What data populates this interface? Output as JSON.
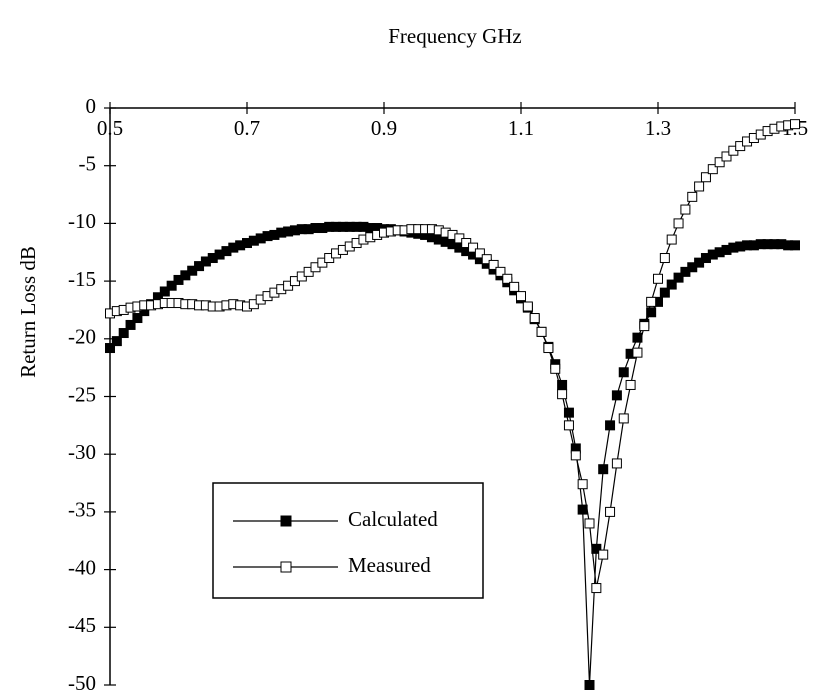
{
  "chart_data": {
    "type": "line",
    "title": "Frequency GHz",
    "ylabel": "Return Loss  dB",
    "x": [
      0.5,
      0.51,
      0.52,
      0.53,
      0.54,
      0.55,
      0.56,
      0.57,
      0.58,
      0.59,
      0.6,
      0.61,
      0.62,
      0.63,
      0.64,
      0.65,
      0.66,
      0.67,
      0.68,
      0.69,
      0.7,
      0.71,
      0.72,
      0.73,
      0.74,
      0.75,
      0.76,
      0.77,
      0.78,
      0.79,
      0.8,
      0.81,
      0.82,
      0.83,
      0.84,
      0.85,
      0.86,
      0.87,
      0.88,
      0.89,
      0.9,
      0.91,
      0.92,
      0.93,
      0.94,
      0.95,
      0.96,
      0.97,
      0.98,
      0.99,
      1.0,
      1.01,
      1.02,
      1.03,
      1.04,
      1.05,
      1.06,
      1.07,
      1.08,
      1.09,
      1.1,
      1.11,
      1.12,
      1.13,
      1.14,
      1.15,
      1.16,
      1.17,
      1.18,
      1.19,
      1.2,
      1.21,
      1.22,
      1.23,
      1.24,
      1.25,
      1.26,
      1.27,
      1.28,
      1.29,
      1.3,
      1.31,
      1.32,
      1.33,
      1.34,
      1.35,
      1.36,
      1.37,
      1.38,
      1.39,
      1.4,
      1.41,
      1.42,
      1.43,
      1.44,
      1.45,
      1.46,
      1.47,
      1.48,
      1.49,
      1.5
    ],
    "series": [
      {
        "name": "Calculated",
        "color": "#000000",
        "marker_fill": "#000000",
        "values": [
          -20.8,
          -20.2,
          -19.5,
          -18.8,
          -18.2,
          -17.6,
          -17.0,
          -16.4,
          -15.9,
          -15.4,
          -14.9,
          -14.5,
          -14.1,
          -13.7,
          -13.3,
          -13.0,
          -12.7,
          -12.4,
          -12.1,
          -11.9,
          -11.7,
          -11.5,
          -11.3,
          -11.1,
          -11.0,
          -10.8,
          -10.7,
          -10.6,
          -10.5,
          -10.5,
          -10.4,
          -10.4,
          -10.3,
          -10.3,
          -10.3,
          -10.3,
          -10.3,
          -10.3,
          -10.4,
          -10.4,
          -10.5,
          -10.5,
          -10.6,
          -10.7,
          -10.8,
          -10.9,
          -11.0,
          -11.2,
          -11.4,
          -11.6,
          -11.8,
          -12.1,
          -12.4,
          -12.7,
          -13.1,
          -13.5,
          -14.0,
          -14.5,
          -15.1,
          -15.8,
          -16.5,
          -17.3,
          -18.3,
          -19.4,
          -20.7,
          -22.2,
          -24.0,
          -26.4,
          -29.5,
          -34.8,
          -50.0,
          -38.2,
          -31.3,
          -27.5,
          -24.9,
          -22.9,
          -21.3,
          -19.9,
          -18.7,
          -17.7,
          -16.8,
          -16.0,
          -15.3,
          -14.7,
          -14.2,
          -13.8,
          -13.4,
          -13.0,
          -12.7,
          -12.5,
          -12.3,
          -12.1,
          -12.0,
          -11.9,
          -11.9,
          -11.8,
          -11.8,
          -11.8,
          -11.8,
          -11.9,
          -11.9
        ]
      },
      {
        "name": "Measured",
        "color": "#000000",
        "marker_fill": "#ffffff",
        "values": [
          -17.8,
          -17.6,
          -17.5,
          -17.3,
          -17.2,
          -17.1,
          -17.1,
          -17.0,
          -16.9,
          -16.9,
          -16.9,
          -17.0,
          -17.0,
          -17.1,
          -17.1,
          -17.2,
          -17.2,
          -17.1,
          -17.0,
          -17.1,
          -17.2,
          -17.0,
          -16.6,
          -16.3,
          -16.0,
          -15.7,
          -15.4,
          -15.0,
          -14.6,
          -14.2,
          -13.8,
          -13.4,
          -13.0,
          -12.6,
          -12.3,
          -12.0,
          -11.7,
          -11.4,
          -11.2,
          -11.0,
          -10.8,
          -10.7,
          -10.6,
          -10.6,
          -10.5,
          -10.5,
          -10.5,
          -10.5,
          -10.6,
          -10.8,
          -11.0,
          -11.3,
          -11.7,
          -12.1,
          -12.6,
          -13.1,
          -13.6,
          -14.2,
          -14.8,
          -15.5,
          -16.3,
          -17.2,
          -18.2,
          -19.4,
          -20.8,
          -22.6,
          -24.8,
          -27.5,
          -30.1,
          -32.6,
          -36.0,
          -41.6,
          -38.7,
          -35.0,
          -30.8,
          -26.9,
          -24.0,
          -21.2,
          -18.9,
          -16.8,
          -14.8,
          -13.0,
          -11.4,
          -10.0,
          -8.8,
          -7.7,
          -6.8,
          -6.0,
          -5.3,
          -4.7,
          -4.2,
          -3.7,
          -3.3,
          -2.9,
          -2.6,
          -2.3,
          -2.0,
          -1.8,
          -1.6,
          -1.5,
          -1.4
        ]
      }
    ],
    "xlim": [
      0.5,
      1.5
    ],
    "xticks": [
      0.5,
      0.7,
      0.9,
      1.1,
      1.3,
      1.5
    ],
    "ylim": [
      -50,
      0
    ],
    "yticks": [
      0,
      -5,
      -10,
      -15,
      -20,
      -25,
      -30,
      -35,
      -40,
      -45,
      -50
    ],
    "grid": false,
    "legend_position": "lower left"
  }
}
